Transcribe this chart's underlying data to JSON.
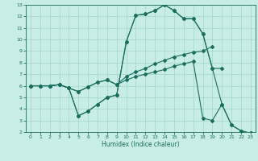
{
  "title": "",
  "xlabel": "Humidex (Indice chaleur)",
  "xlim": [
    -0.5,
    23.5
  ],
  "ylim": [
    2,
    13
  ],
  "xticks": [
    0,
    1,
    2,
    3,
    4,
    5,
    6,
    7,
    8,
    9,
    10,
    11,
    12,
    13,
    14,
    15,
    16,
    17,
    18,
    19,
    20,
    21,
    22,
    23
  ],
  "yticks": [
    2,
    3,
    4,
    5,
    6,
    7,
    8,
    9,
    10,
    11,
    12,
    13
  ],
  "bg_color": "#c8ece6",
  "grid_color": "#a0d4cc",
  "line_color": "#1a6e5e",
  "line1_x": [
    0,
    1,
    2,
    3,
    4,
    5,
    6,
    7,
    8,
    9,
    10,
    11,
    12,
    13,
    14,
    15,
    16,
    17,
    18,
    19
  ],
  "line1_y": [
    6.0,
    6.0,
    6.0,
    6.1,
    5.8,
    5.5,
    5.9,
    6.3,
    6.5,
    6.1,
    6.8,
    7.2,
    7.5,
    7.9,
    8.2,
    8.5,
    8.7,
    8.9,
    9.0,
    9.4
  ],
  "line2_x": [
    0,
    1,
    2,
    3,
    4,
    5,
    6,
    7,
    8,
    9,
    10,
    11,
    12,
    13,
    14,
    15,
    16,
    17,
    18,
    19,
    20,
    21,
    22,
    23
  ],
  "line2_y": [
    6.0,
    6.0,
    6.0,
    6.1,
    5.8,
    3.4,
    3.8,
    4.4,
    5.0,
    5.2,
    9.8,
    12.1,
    12.2,
    12.5,
    13.0,
    12.5,
    11.8,
    11.8,
    10.5,
    7.5,
    4.4,
    2.6,
    2.1,
    1.9
  ],
  "line3_x": [
    0,
    1,
    2,
    3,
    4,
    5,
    6,
    7,
    8,
    9,
    10,
    11,
    12,
    13,
    14,
    15,
    16,
    17,
    18,
    19,
    20
  ],
  "line3_y": [
    6.0,
    6.0,
    6.0,
    6.1,
    5.8,
    3.4,
    3.8,
    4.4,
    5.0,
    5.2,
    9.8,
    12.1,
    12.2,
    12.5,
    13.0,
    12.5,
    11.8,
    11.8,
    10.5,
    7.5,
    7.5
  ],
  "line4_x": [
    0,
    1,
    2,
    3,
    4,
    5,
    6,
    7,
    8,
    9,
    10,
    11,
    12,
    13,
    14,
    15,
    16,
    17,
    18,
    19,
    20,
    21,
    22,
    23
  ],
  "line4_y": [
    6.0,
    6.0,
    6.0,
    6.1,
    5.8,
    5.5,
    5.9,
    6.3,
    6.5,
    6.1,
    6.5,
    6.8,
    7.0,
    7.2,
    7.4,
    7.7,
    7.9,
    8.1,
    3.2,
    3.0,
    4.4,
    2.6,
    2.1,
    1.9
  ]
}
